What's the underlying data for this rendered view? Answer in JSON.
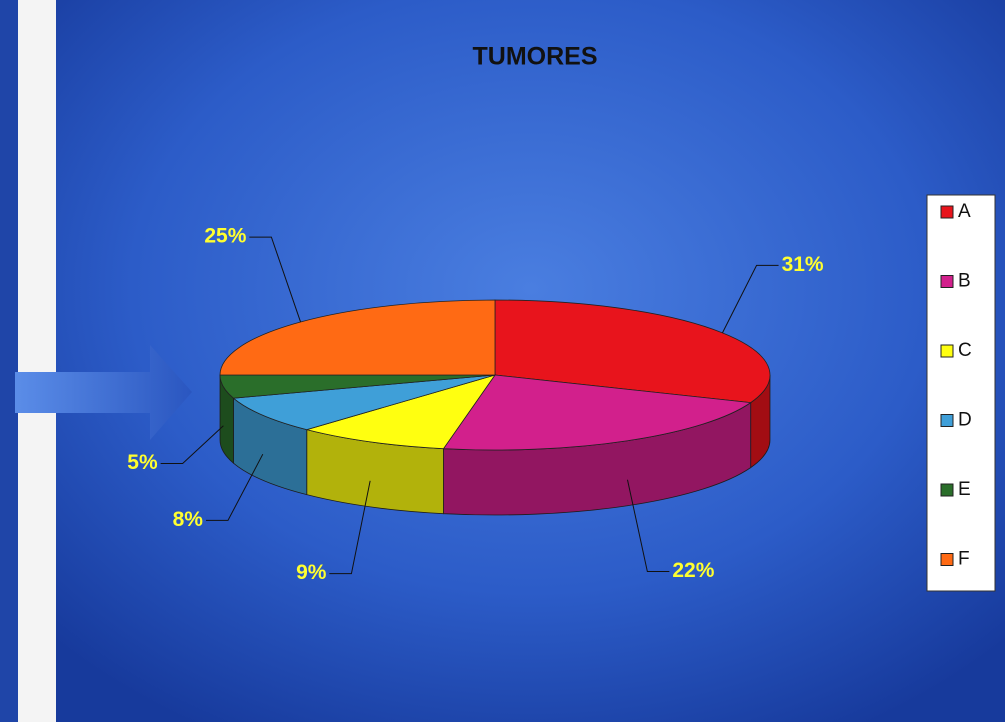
{
  "chart_data": {
    "type": "pie",
    "title": "TUMORES",
    "categories": [
      "A",
      "B",
      "C",
      "D",
      "E",
      "F"
    ],
    "values": [
      31,
      22,
      9,
      8,
      5,
      25
    ],
    "value_labels": [
      "31%",
      "22%",
      "9%",
      "8%",
      "5%",
      "25%"
    ],
    "colors": [
      "#e8141c",
      "#d2208c",
      "#ffff10",
      "#3f9fd8",
      "#2a6e2a",
      "#ff6a14"
    ],
    "legend": "right"
  }
}
